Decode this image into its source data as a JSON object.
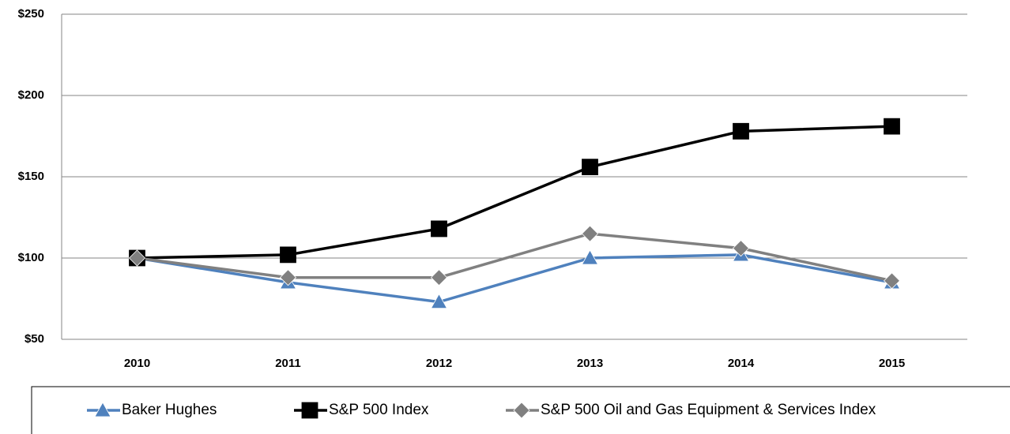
{
  "chart_data": {
    "type": "line",
    "categories": [
      "2010",
      "2011",
      "2012",
      "2013",
      "2014",
      "2015"
    ],
    "series": [
      {
        "name": "Baker Hughes",
        "color": "#4f81bd",
        "marker": "triangle",
        "values": [
          100,
          85,
          73,
          100,
          102,
          85
        ]
      },
      {
        "name": "S&P 500 Index",
        "color": "#000000",
        "marker": "square",
        "values": [
          100,
          102,
          118,
          156,
          178,
          181
        ]
      },
      {
        "name": "S&P 500 Oil and Gas Equipment & Services Index",
        "color": "#808080",
        "marker": "diamond",
        "values": [
          100,
          88,
          88,
          115,
          106,
          86
        ]
      }
    ],
    "ylim": [
      50,
      250
    ],
    "yticks": [
      {
        "value": 50,
        "label": "$50"
      },
      {
        "value": 100,
        "label": "$100"
      },
      {
        "value": 150,
        "label": "$150"
      },
      {
        "value": 200,
        "label": "$200"
      },
      {
        "value": 250,
        "label": "$250"
      }
    ],
    "grid": true,
    "legend": "bottom"
  }
}
